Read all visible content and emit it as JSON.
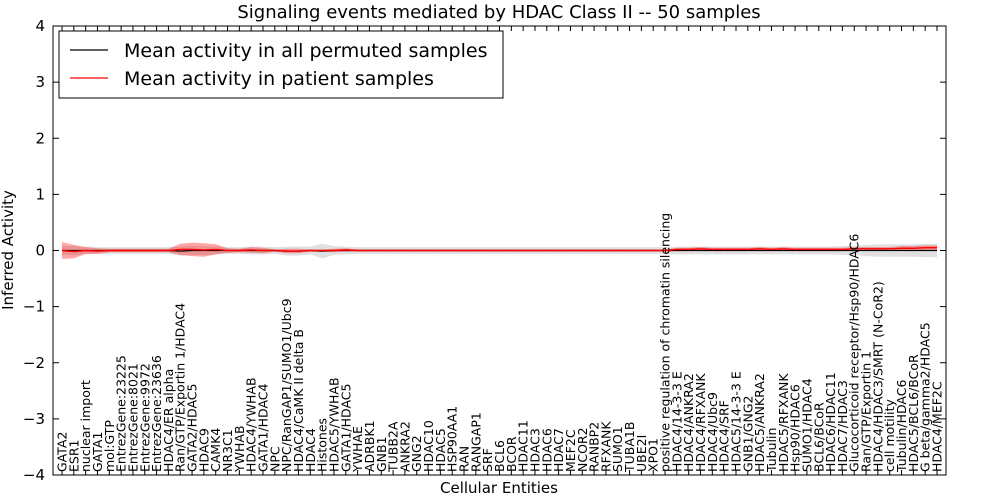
{
  "chart_data": {
    "type": "line",
    "title": "Signaling events mediated by HDAC Class II -- 50 samples",
    "xlabel": "Cellular Entities",
    "ylabel": "Inferred Activity",
    "ylim": [
      -4,
      4
    ],
    "yticks": [
      4,
      3,
      2,
      1,
      0,
      -1,
      -2,
      -3,
      -4
    ],
    "ytick_labels": [
      "4",
      "3",
      "2",
      "1",
      "0",
      "−1",
      "−2",
      "−3",
      "−4"
    ],
    "legend_location": "upper-left",
    "categories": [
      "GATA2",
      "ESR1",
      "nuclear import",
      "GATA1",
      "mol:GTP",
      "EntrezGene:23225",
      "EntrezGene:8021",
      "EntrezGene:9972",
      "EntrezGene:23636",
      "HDAC4/ER alpha",
      "Ran/GTP/Exportin 1/HDAC4",
      "GATA2/HDAC5",
      "HDAC9",
      "CAMK4",
      "NR3C1",
      "YWHAB",
      "HDAC4/YWHAB",
      "GATA1/HDAC4",
      "NPC",
      "NPC/RanGAP1/SUMO1/Ubc9",
      "HDAC4/CaMK II delta B",
      "HDAC4",
      "Histones",
      "HDAC5/YWHAB",
      "GATA1/HDAC5",
      "YWHAE",
      "ADRBK1",
      "GNB1",
      "TUBB2A",
      "ANKRA2",
      "GNG2",
      "HDAC10",
      "HDAC5",
      "HSP90AA1",
      "RAN",
      "RANGAP1",
      "SRF",
      "BCL6",
      "BCOR",
      "HDAC11",
      "HDAC3",
      "HDAC6",
      "HDAC7",
      "MEF2C",
      "NCOR2",
      "RANBP2",
      "RFXANK",
      "SUMO1",
      "TUBA1B",
      "UBE2I",
      "XPO1",
      "positive regulation of chromatin silencing",
      "HDAC4/14-3-3 E",
      "HDAC4/ANKRA2",
      "HDAC4/RFXANK",
      "HDAC4/Ubc9",
      "HDAC4/SRF",
      "HDAC5/14-3-3 E",
      "GNB1/GNG2",
      "HDAC5/ANKRA2",
      "Tubulin",
      "HDAC5/RFXANK",
      "Hsp90/HDAC6",
      "SUMO1/HDAC4",
      "BCL6/BCoR",
      "HDAC6/HDAC11",
      "HDAC7/HDAC3",
      "Glucocorticoid receptor/Hsp90/HDAC6",
      "Ran/GTP/Exportin 1",
      "HDAC4/HDAC3/SMRT (N-CoR2)",
      "cell motility",
      "Tubulin/HDAC6",
      "HDAC5/BCL6/BCoR",
      "G beta/gamma2/HDAC5",
      "HDAC4/MEF2C"
    ],
    "series": [
      {
        "name": "Mean activity in all permuted samples",
        "color": "#000000",
        "values": [
          0.0,
          0.0,
          0.0,
          0.0,
          0.0,
          0.0,
          0.0,
          0.0,
          0.0,
          0.0,
          -0.01,
          0.0,
          0.0,
          0.0,
          0.0,
          0.0,
          0.0,
          0.0,
          0.0,
          -0.01,
          -0.01,
          0.0,
          -0.01,
          0.0,
          0.0,
          0.0,
          0.0,
          0.0,
          0.0,
          0.0,
          0.0,
          0.0,
          0.0,
          0.0,
          0.0,
          0.0,
          0.0,
          0.0,
          0.0,
          0.0,
          0.0,
          0.0,
          0.0,
          0.0,
          0.0,
          0.0,
          0.0,
          0.0,
          0.0,
          0.0,
          0.0,
          0.0,
          0.0,
          0.0,
          0.0,
          0.0,
          0.0,
          0.0,
          0.0,
          0.0,
          0.0,
          0.0,
          0.0,
          0.0,
          0.0,
          0.0,
          0.0,
          0.0,
          0.0,
          0.0,
          0.0,
          0.0,
          0.0,
          0.0,
          0.0
        ],
        "band": [
          0.08,
          0.08,
          0.07,
          0.06,
          0.06,
          0.06,
          0.06,
          0.06,
          0.06,
          0.06,
          0.08,
          0.08,
          0.08,
          0.07,
          0.06,
          0.06,
          0.07,
          0.07,
          0.06,
          0.08,
          0.08,
          0.07,
          0.13,
          0.08,
          0.07,
          0.06,
          0.06,
          0.06,
          0.06,
          0.06,
          0.06,
          0.06,
          0.06,
          0.06,
          0.06,
          0.06,
          0.06,
          0.06,
          0.06,
          0.06,
          0.06,
          0.06,
          0.06,
          0.06,
          0.06,
          0.06,
          0.06,
          0.06,
          0.06,
          0.06,
          0.06,
          0.06,
          0.07,
          0.07,
          0.07,
          0.07,
          0.07,
          0.07,
          0.07,
          0.07,
          0.07,
          0.07,
          0.07,
          0.07,
          0.07,
          0.07,
          0.08,
          0.08,
          0.1,
          0.11,
          0.11,
          0.11,
          0.11,
          0.12,
          0.12
        ]
      },
      {
        "name": "Mean activity in patient samples",
        "color": "#ff0000",
        "values": [
          0.0,
          -0.02,
          0.0,
          -0.01,
          0.0,
          0.0,
          0.0,
          0.0,
          0.0,
          0.0,
          0.02,
          0.02,
          0.01,
          0.02,
          0.0,
          0.0,
          0.01,
          0.0,
          0.0,
          -0.01,
          -0.01,
          0.0,
          0.0,
          0.0,
          0.01,
          0.0,
          0.0,
          0.0,
          0.0,
          0.0,
          0.0,
          0.0,
          0.0,
          0.0,
          0.0,
          0.0,
          0.0,
          0.0,
          0.0,
          0.0,
          0.0,
          0.0,
          0.0,
          0.0,
          0.0,
          0.0,
          0.0,
          0.0,
          0.0,
          0.0,
          0.0,
          0.0,
          0.02,
          0.02,
          0.03,
          0.02,
          0.02,
          0.02,
          0.02,
          0.03,
          0.02,
          0.03,
          0.02,
          0.02,
          0.02,
          0.02,
          0.02,
          0.03,
          0.03,
          0.03,
          0.03,
          0.04,
          0.04,
          0.05,
          0.05
        ],
        "band": [
          0.15,
          0.12,
          0.06,
          0.05,
          0.03,
          0.03,
          0.03,
          0.03,
          0.03,
          0.03,
          0.1,
          0.12,
          0.12,
          0.09,
          0.04,
          0.03,
          0.05,
          0.05,
          0.02,
          0.04,
          0.04,
          0.02,
          0.02,
          0.03,
          0.03,
          0.02,
          0.02,
          0.02,
          0.02,
          0.02,
          0.02,
          0.02,
          0.02,
          0.02,
          0.02,
          0.02,
          0.02,
          0.02,
          0.02,
          0.02,
          0.02,
          0.02,
          0.02,
          0.02,
          0.02,
          0.02,
          0.02,
          0.02,
          0.02,
          0.02,
          0.02,
          0.02,
          0.03,
          0.03,
          0.03,
          0.03,
          0.03,
          0.03,
          0.03,
          0.03,
          0.03,
          0.03,
          0.03,
          0.03,
          0.03,
          0.03,
          0.03,
          0.03,
          0.03,
          0.03,
          0.03,
          0.04,
          0.04,
          0.04,
          0.04
        ]
      }
    ]
  }
}
